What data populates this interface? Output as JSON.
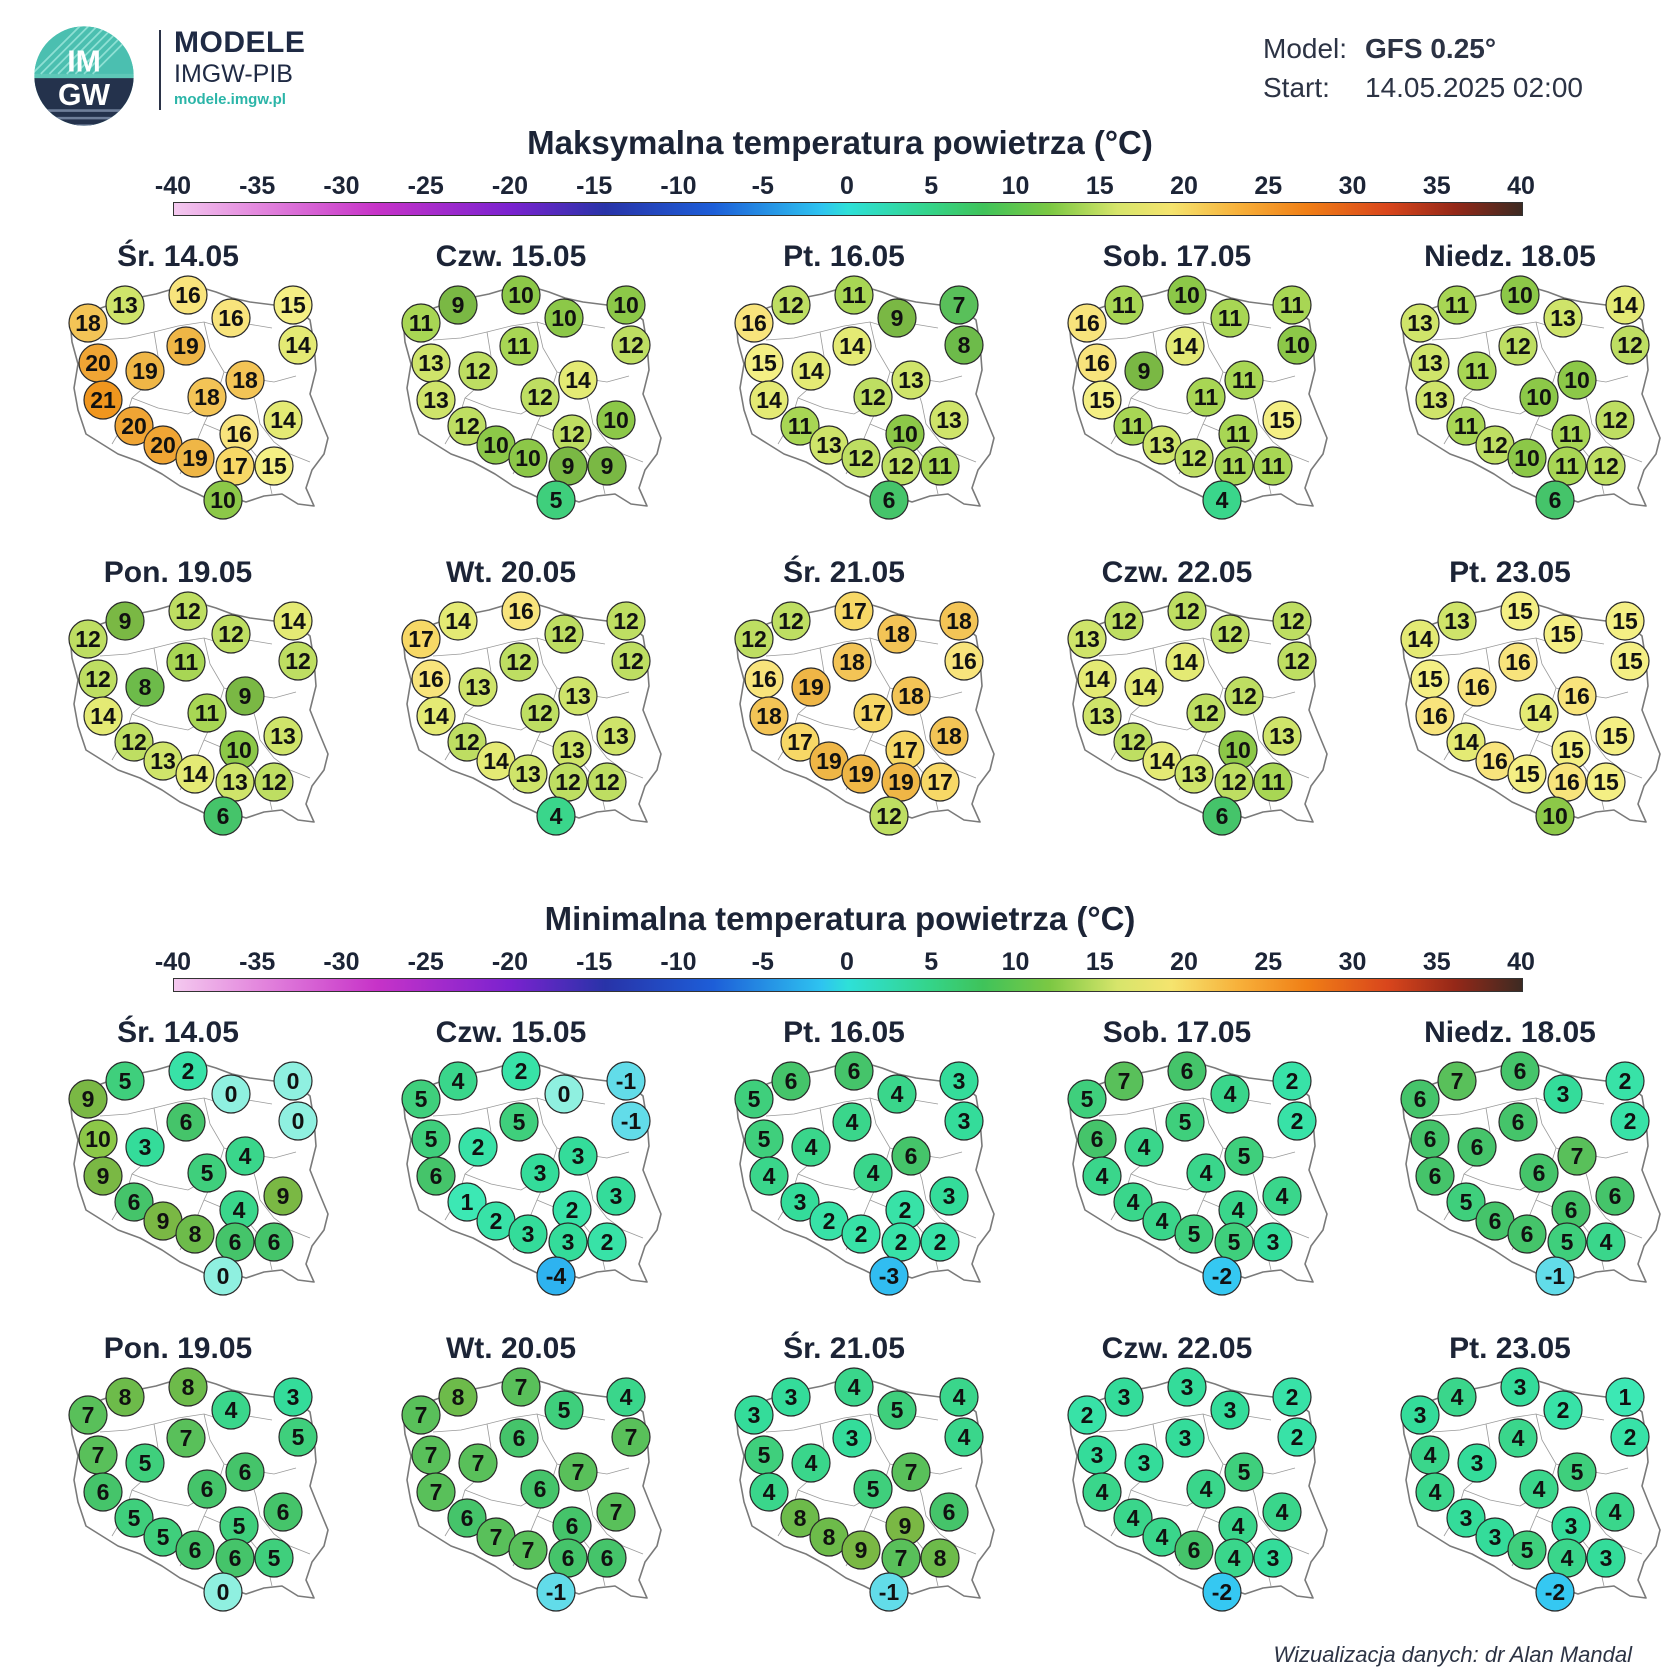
{
  "header": {
    "brand_name": "MODELE",
    "brand_sub": "IMGW-PIB",
    "brand_url": "modele.imgw.pl",
    "logo_text_top": "IM",
    "logo_text_bottom": "GW",
    "model_label": "Model:",
    "model_value": "GFS 0.25°",
    "start_label": "Start:",
    "start_value": "14.05.2025 02:00"
  },
  "scale": {
    "ticks": [
      "-40",
      "-35",
      "-30",
      "-25",
      "-20",
      "-15",
      "-10",
      "-5",
      "0",
      "5",
      "10",
      "15",
      "20",
      "25",
      "30",
      "35",
      "40"
    ],
    "range": [
      -40,
      40
    ]
  },
  "colors": {
    "map_fill": "#ffffff",
    "map_border": "#7a7a7a",
    "circle_stroke": "#2a2a2a"
  },
  "sections": [
    {
      "title": "Maksymalna temperatura powietrza (°C)",
      "days": [
        {
          "label": "Śr. 14.05",
          "values": [
            13,
            16,
            15,
            18,
            16,
            14,
            20,
            19,
            19,
            18,
            21,
            18,
            14,
            20,
            16,
            20,
            19,
            17,
            15,
            10
          ]
        },
        {
          "label": "Czw. 15.05",
          "values": [
            9,
            10,
            10,
            11,
            10,
            12,
            13,
            12,
            11,
            14,
            13,
            12,
            10,
            12,
            12,
            10,
            10,
            9,
            9,
            5
          ]
        },
        {
          "label": "Pt. 16.05",
          "values": [
            12,
            11,
            7,
            16,
            9,
            8,
            15,
            14,
            14,
            13,
            14,
            12,
            13,
            11,
            10,
            13,
            12,
            12,
            11,
            6
          ]
        },
        {
          "label": "Sob. 17.05",
          "values": [
            11,
            10,
            11,
            16,
            11,
            10,
            16,
            9,
            14,
            11,
            15,
            11,
            15,
            11,
            11,
            13,
            12,
            11,
            11,
            4
          ]
        },
        {
          "label": "Niedz. 18.05",
          "values": [
            11,
            10,
            14,
            13,
            13,
            12,
            13,
            11,
            12,
            10,
            13,
            10,
            12,
            11,
            11,
            12,
            10,
            11,
            12,
            6
          ]
        },
        {
          "label": "Pon. 19.05",
          "values": [
            9,
            12,
            14,
            12,
            12,
            12,
            12,
            8,
            11,
            9,
            14,
            11,
            13,
            12,
            10,
            13,
            14,
            13,
            12,
            6
          ]
        },
        {
          "label": "Wt. 20.05",
          "values": [
            14,
            16,
            12,
            17,
            12,
            12,
            16,
            13,
            12,
            13,
            14,
            12,
            13,
            12,
            13,
            14,
            13,
            12,
            12,
            4
          ]
        },
        {
          "label": "Śr. 21.05",
          "values": [
            12,
            17,
            18,
            12,
            18,
            16,
            16,
            19,
            18,
            18,
            18,
            17,
            18,
            17,
            17,
            19,
            19,
            19,
            17,
            12
          ]
        },
        {
          "label": "Czw. 22.05",
          "values": [
            12,
            12,
            12,
            13,
            12,
            12,
            14,
            14,
            14,
            12,
            13,
            12,
            13,
            12,
            10,
            14,
            13,
            12,
            11,
            6
          ]
        },
        {
          "label": "Pt. 23.05",
          "values": [
            13,
            15,
            15,
            14,
            15,
            15,
            15,
            16,
            16,
            16,
            16,
            14,
            15,
            14,
            15,
            16,
            15,
            16,
            15,
            10
          ]
        }
      ]
    },
    {
      "title": "Minimalna temperatura powietrza (°C)",
      "days": [
        {
          "label": "Śr. 14.05",
          "values": [
            5,
            2,
            0,
            9,
            0,
            0,
            10,
            3,
            6,
            4,
            9,
            5,
            9,
            6,
            4,
            9,
            8,
            6,
            6,
            0
          ]
        },
        {
          "label": "Czw. 15.05",
          "values": [
            4,
            2,
            -1,
            5,
            0,
            -1,
            5,
            2,
            5,
            3,
            6,
            3,
            3,
            1,
            2,
            2,
            3,
            3,
            2,
            -4
          ]
        },
        {
          "label": "Pt. 16.05",
          "values": [
            6,
            6,
            3,
            5,
            4,
            3,
            5,
            4,
            4,
            6,
            4,
            4,
            3,
            3,
            2,
            2,
            2,
            2,
            2,
            -3
          ]
        },
        {
          "label": "Sob. 17.05",
          "values": [
            7,
            6,
            2,
            5,
            4,
            2,
            6,
            4,
            5,
            5,
            4,
            4,
            4,
            4,
            4,
            4,
            5,
            5,
            3,
            -2
          ]
        },
        {
          "label": "Niedz. 18.05",
          "values": [
            7,
            6,
            2,
            6,
            3,
            2,
            6,
            6,
            6,
            7,
            6,
            6,
            6,
            5,
            6,
            6,
            6,
            5,
            4,
            -1
          ]
        },
        {
          "label": "Pon. 19.05",
          "values": [
            8,
            8,
            3,
            7,
            4,
            5,
            7,
            5,
            7,
            6,
            6,
            6,
            6,
            5,
            5,
            5,
            6,
            6,
            5,
            0
          ]
        },
        {
          "label": "Wt. 20.05",
          "values": [
            8,
            7,
            4,
            7,
            5,
            7,
            7,
            7,
            6,
            7,
            7,
            6,
            7,
            6,
            6,
            7,
            7,
            6,
            6,
            -1
          ]
        },
        {
          "label": "Śr. 21.05",
          "values": [
            3,
            4,
            4,
            3,
            5,
            4,
            5,
            4,
            3,
            7,
            4,
            5,
            6,
            8,
            9,
            8,
            9,
            7,
            8,
            -1
          ]
        },
        {
          "label": "Czw. 22.05",
          "values": [
            3,
            3,
            2,
            2,
            3,
            2,
            3,
            3,
            3,
            5,
            4,
            4,
            4,
            4,
            4,
            4,
            6,
            4,
            3,
            -2
          ]
        },
        {
          "label": "Pt. 23.05",
          "values": [
            4,
            3,
            1,
            3,
            2,
            2,
            4,
            3,
            4,
            5,
            4,
            4,
            4,
            3,
            3,
            3,
            5,
            4,
            3,
            -2
          ]
        }
      ]
    }
  ],
  "credit": "Wizualizacja danych: dr Alan Mandal"
}
